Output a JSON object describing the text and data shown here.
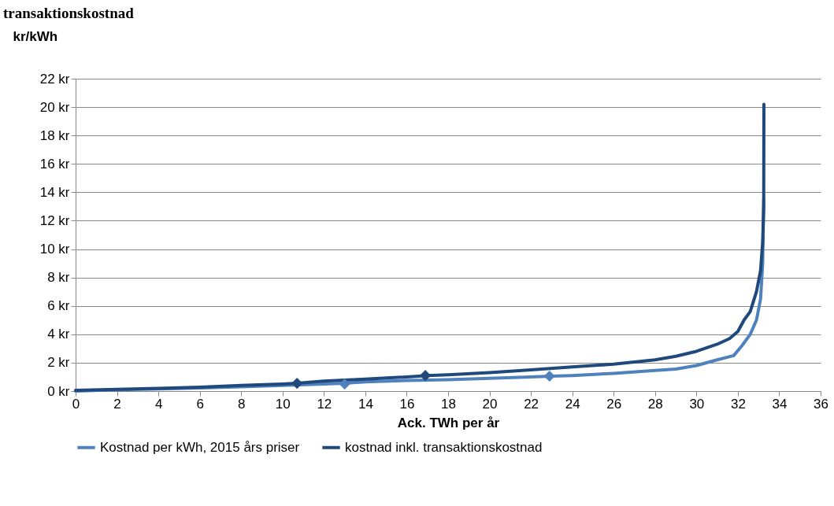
{
  "chart_data": {
    "type": "line",
    "title": "transaktionskostnad",
    "ylabel": "kr/kWh",
    "xlabel": "Ack. TWh per år",
    "xlim": [
      0,
      36
    ],
    "xticks": [
      0,
      2,
      4,
      6,
      8,
      10,
      12,
      14,
      16,
      18,
      20,
      22,
      24,
      26,
      28,
      30,
      32,
      34,
      36
    ],
    "ylim": [
      0,
      22
    ],
    "yticks": [
      {
        "value": 0,
        "label": "0 kr"
      },
      {
        "value": 2,
        "label": "2 kr"
      },
      {
        "value": 4,
        "label": "4 kr"
      },
      {
        "value": 6,
        "label": "6 kr"
      },
      {
        "value": 8,
        "label": "8 kr"
      },
      {
        "value": 10,
        "label": "10 kr"
      },
      {
        "value": 12,
        "label": "12 kr"
      },
      {
        "value": 14,
        "label": "14 kr"
      },
      {
        "value": 16,
        "label": "16 kr"
      },
      {
        "value": 18,
        "label": "18 kr"
      },
      {
        "value": 20,
        "label": "20 kr"
      },
      {
        "value": 22,
        "label": "22 kr"
      }
    ],
    "grid": "y",
    "legend": "bottom",
    "line_style": "solid",
    "series": [
      {
        "name": "Kostnad per kWh, 2015 års priser",
        "color": "#4f81bd",
        "x": [
          0,
          2,
          4,
          6,
          8,
          10,
          12,
          13,
          14,
          16,
          18,
          20,
          22,
          23,
          24,
          26,
          28,
          29,
          30,
          31,
          31.8,
          32.2,
          32.6,
          32.9,
          33.1,
          33.2,
          33.25
        ],
        "values": [
          0,
          0.1,
          0.15,
          0.22,
          0.3,
          0.4,
          0.5,
          0.55,
          0.65,
          0.75,
          0.8,
          0.9,
          1.0,
          1.05,
          1.1,
          1.25,
          1.45,
          1.55,
          1.8,
          2.2,
          2.5,
          3.2,
          4.0,
          5.0,
          6.5,
          9,
          13.5
        ]
      },
      {
        "name": "kostnad inkl. transaktionskostnad",
        "color": "#1f497d",
        "x": [
          0,
          2,
          4,
          6,
          8,
          10,
          10.7,
          12,
          14,
          16,
          17,
          18,
          20,
          22,
          24,
          26,
          28,
          29,
          30,
          31,
          31.6,
          32,
          32.3,
          32.6,
          32.9,
          33.1,
          33.2,
          33.25,
          33.26
        ],
        "values": [
          0.05,
          0.12,
          0.2,
          0.28,
          0.4,
          0.5,
          0.55,
          0.7,
          0.85,
          1.0,
          1.1,
          1.15,
          1.3,
          1.5,
          1.7,
          1.9,
          2.2,
          2.45,
          2.8,
          3.3,
          3.7,
          4.2,
          5.0,
          5.6,
          7.0,
          8.5,
          10.5,
          13,
          20.2
        ]
      },
      {
        "type": "scatter",
        "marker": "diamond",
        "color": "#4f81bd",
        "x": [
          13,
          22.9
        ],
        "values": [
          0.5,
          1.05
        ]
      },
      {
        "type": "scatter",
        "marker": "diamond",
        "color": "#1f497d",
        "x": [
          10.7,
          16.9
        ],
        "values": [
          0.55,
          1.1
        ]
      }
    ]
  }
}
